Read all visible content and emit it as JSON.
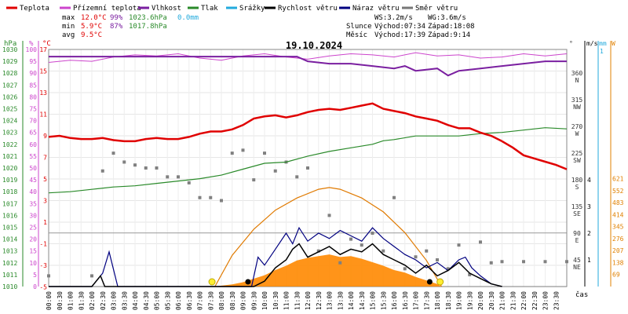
{
  "chart_data": {
    "type": "line",
    "title": "19.10.2024",
    "xlabel": "čas",
    "legend": [
      {
        "name": "Teplota",
        "color": "#e00000"
      },
      {
        "name": "Přízemní teplota",
        "color": "#cc44cc"
      },
      {
        "name": "Vlhkost",
        "color": "#7a1fa0"
      },
      {
        "name": "Tlak",
        "color": "#2a8a2a"
      },
      {
        "name": "Srážky",
        "color": "#22aadd"
      },
      {
        "name": "Rychlost větru",
        "color": "#000000"
      },
      {
        "name": "Náraz větru",
        "color": "#000080"
      },
      {
        "name": "Směr větru",
        "color": "#777777"
      }
    ],
    "stats": {
      "max_label": "max",
      "max_temp": "12.0°C",
      "max_hum": "99%",
      "max_press": "1023.6hPa",
      "max_rain": "0.0mm",
      "min_label": "min",
      "min_temp": "5.9°C",
      "min_hum": "87%",
      "min_press": "1017.8hPa",
      "avg_label": "avg",
      "avg_temp": "9.5°C"
    },
    "info": {
      "ws": "WS:3.2m/s",
      "wg": "WG:3.6m/s",
      "sun_label": "Slunce",
      "sun_rise": "Východ:07:34",
      "sun_set": "Západ:18:08",
      "moon_label": "Měsíc",
      "moon_rise": "Východ:17:39",
      "moon_set": "Západ:9:14"
    },
    "axes": {
      "hpa_title": "hPa",
      "pct_title": "%",
      "c_title": "°C",
      "deg_title": "°",
      "ms_title": "m/s",
      "mm_title": "mm",
      "w_title": "W",
      "hpa_ticks": [
        "1030",
        "1029",
        "1028",
        "1027",
        "1026",
        "1025",
        "1024",
        "1023",
        "1022",
        "1021",
        "1020",
        "1019",
        "1018",
        "1017",
        "1016",
        "1015",
        "1014",
        "1013",
        "1012",
        "1011",
        "1010"
      ],
      "pct_ticks": [
        "100",
        "95",
        "90",
        "85",
        "80",
        "75",
        "70",
        "65",
        "60",
        "55",
        "50",
        "45",
        "40",
        "35",
        "30",
        "25",
        "20",
        "15",
        "10",
        "5",
        "0"
      ],
      "c_ticks": [
        17,
        15,
        13,
        11,
        9,
        7,
        5,
        3,
        1,
        -1,
        -3,
        -5
      ],
      "dir_ticks": [
        {
          "deg": "360",
          "lab": "N"
        },
        {
          "deg": "315",
          "lab": "NW"
        },
        {
          "deg": "270",
          "lab": "W"
        },
        {
          "deg": "225",
          "lab": "SW"
        },
        {
          "deg": "180",
          "lab": "S"
        },
        {
          "deg": "135",
          "lab": "SE"
        },
        {
          "deg": "90",
          "lab": "E"
        },
        {
          "deg": "45",
          "lab": "NE"
        }
      ],
      "ms_ticks": [
        "4",
        "3",
        "2",
        "1"
      ],
      "mm_ticks": [
        "1"
      ],
      "w_ticks": [
        "621",
        "552",
        "483",
        "414",
        "345",
        "276",
        "207",
        "138",
        "69"
      ],
      "time_ticks": [
        "00:00",
        "00:30",
        "01:00",
        "01:30",
        "02:00",
        "02:30",
        "03:00",
        "03:30",
        "04:00",
        "04:30",
        "05:00",
        "05:30",
        "06:00",
        "06:30",
        "07:00",
        "07:30",
        "08:00",
        "08:30",
        "09:00",
        "09:30",
        "10:00",
        "10:30",
        "11:00",
        "11:30",
        "12:00",
        "12:30",
        "13:00",
        "13:30",
        "14:00",
        "14:30",
        "15:00",
        "15:30",
        "16:00",
        "16:30",
        "17:00",
        "17:30",
        "18:00",
        "18:30",
        "19:00",
        "19:30",
        "20:00",
        "20:30",
        "21:00",
        "21:30",
        "22:00",
        "22:30",
        "23:00",
        "23:30"
      ]
    },
    "series": {
      "temperature": {
        "unit": "°C",
        "hours": [
          0,
          0.5,
          1,
          1.5,
          2,
          2.5,
          3,
          3.5,
          4,
          4.5,
          5,
          5.5,
          6,
          6.5,
          7,
          7.5,
          8,
          8.5,
          9,
          9.5,
          10,
          10.5,
          11,
          11.5,
          12,
          12.5,
          13,
          13.5,
          14,
          14.5,
          15,
          15.5,
          16,
          16.5,
          17,
          17.5,
          18,
          18.5,
          19,
          19.5,
          20,
          20.5,
          21
        ],
        "values": [
          8.9,
          9.0,
          8.8,
          8.7,
          8.7,
          8.8,
          8.6,
          8.5,
          8.5,
          8.7,
          8.8,
          8.7,
          8.7,
          8.9,
          9.2,
          9.4,
          9.4,
          9.6,
          10.0,
          10.6,
          10.8,
          10.9,
          10.7,
          10.9,
          11.2,
          11.4,
          11.5,
          11.4,
          11.6,
          11.8,
          12.0,
          11.5,
          11.3,
          11.1,
          10.8,
          10.6,
          10.4,
          10.0,
          9.7,
          9.7,
          9.3,
          9.0,
          8.5
        ]
      },
      "temperature_tail": {
        "hours": [
          21.5,
          22,
          22.5,
          23,
          23.5,
          24
        ],
        "values": [
          7.9,
          7.2,
          6.9,
          6.6,
          6.3,
          5.9
        ]
      },
      "ground_temperature": {
        "unit": "°C",
        "hours": [
          0,
          1,
          2,
          3,
          4,
          5,
          6,
          7,
          8,
          9,
          10,
          11,
          12,
          13,
          14,
          15,
          16,
          17,
          18,
          19,
          20,
          21,
          22,
          23,
          24
        ],
        "values": [
          15.8,
          16.0,
          15.9,
          16.3,
          16.5,
          16.4,
          16.6,
          16.2,
          16.0,
          16.4,
          16.6,
          16.3,
          16.1,
          16.4,
          16.6,
          16.5,
          16.3,
          16.7,
          16.4,
          16.5,
          16.2,
          16.3,
          16.6,
          16.4,
          16.6
        ]
      },
      "humidity": {
        "unit": "%",
        "hours": [
          0,
          1,
          2,
          3,
          4,
          5,
          6,
          7,
          8,
          9,
          10,
          11,
          11.5,
          12,
          13,
          14,
          15,
          16,
          16.5,
          17,
          18,
          18.5,
          19,
          20,
          21,
          22,
          23,
          24
        ],
        "values": [
          97,
          97,
          97,
          97,
          97,
          97,
          97,
          97,
          97,
          97,
          97,
          97,
          97,
          95,
          94,
          94,
          93,
          92,
          93,
          91,
          92,
          89,
          91,
          92,
          93,
          94,
          95,
          95
        ]
      },
      "pressure": {
        "unit": "hPa",
        "hours": [
          0,
          1,
          2,
          3,
          4,
          5,
          6,
          7,
          8,
          9,
          10,
          11,
          12,
          13,
          14,
          15,
          15.5,
          16,
          17,
          18,
          19,
          20,
          21,
          22,
          23,
          24
        ],
        "values": [
          1017.9,
          1018.0,
          1018.2,
          1018.4,
          1018.5,
          1018.7,
          1018.9,
          1019.1,
          1019.4,
          1019.9,
          1020.4,
          1020.5,
          1021.0,
          1021.4,
          1021.7,
          1022.0,
          1022.3,
          1022.4,
          1022.7,
          1022.7,
          1022.7,
          1022.9,
          1023.0,
          1023.2,
          1023.4,
          1023.3
        ]
      },
      "wind_speed": {
        "unit": "m/s",
        "hours": [
          0,
          2,
          2.4,
          2.6,
          3,
          9.5,
          10,
          10.5,
          11,
          11.3,
          11.6,
          12,
          12.5,
          13,
          13.5,
          14,
          14.5,
          15,
          15.5,
          16,
          16.5,
          17,
          17.5,
          18,
          18.5,
          19,
          19.5,
          20,
          20.5,
          21
        ],
        "values": [
          0,
          0,
          0.4,
          0,
          0,
          0,
          0.2,
          0.7,
          1.0,
          1.4,
          1.6,
          1.1,
          1.3,
          1.5,
          1.2,
          1.4,
          1.3,
          1.6,
          1.2,
          1.0,
          0.8,
          0.5,
          0.8,
          0.4,
          0.6,
          0.9,
          0.5,
          0.3,
          0.1,
          0
        ]
      },
      "wind_gust": {
        "unit": "m/s",
        "hours": [
          0,
          2,
          2.5,
          2.8,
          3.2,
          9.4,
          9.7,
          10,
          10.5,
          11,
          11.3,
          11.6,
          12,
          12.5,
          13,
          13.5,
          14,
          14.5,
          15,
          15.5,
          16,
          16.5,
          17,
          17.5,
          18,
          18.5,
          19,
          19.3,
          19.6,
          20,
          20.5,
          21
        ],
        "values": [
          0,
          0,
          0.5,
          1.3,
          0,
          0,
          1.1,
          0.8,
          1.4,
          2.0,
          1.6,
          2.2,
          1.7,
          2.0,
          1.8,
          2.1,
          1.9,
          1.7,
          2.2,
          1.8,
          1.5,
          1.2,
          1.0,
          0.7,
          0.9,
          0.6,
          1.0,
          1.1,
          0.7,
          0.4,
          0.1,
          0
        ]
      },
      "wind_direction": {
        "unit": "°",
        "hours": [
          0,
          2,
          2.5,
          3,
          3.5,
          4,
          4.5,
          5,
          5.5,
          6,
          6.5,
          7,
          7.5,
          8,
          8.5,
          9,
          9.5,
          10,
          10.5,
          11,
          11.5,
          12,
          12.5,
          13,
          13.5,
          14,
          14.5,
          15,
          15.5,
          16,
          16.5,
          17,
          17.5,
          18,
          18.5,
          19,
          19.5,
          20,
          20.5,
          21,
          22,
          23,
          24
        ],
        "values": [
          18,
          18,
          195,
          225,
          210,
          205,
          200,
          200,
          185,
          185,
          175,
          150,
          150,
          145,
          225,
          230,
          180,
          225,
          195,
          210,
          185,
          200,
          60,
          120,
          40,
          80,
          70,
          90,
          60,
          150,
          30,
          50,
          60,
          45,
          30,
          70,
          20,
          75,
          40,
          42,
          42,
          42,
          42
        ]
      },
      "solar_radiation": {
        "unit": "W",
        "hours": [
          7.7,
          8,
          8.5,
          9,
          9.5,
          10,
          10.5,
          11,
          11.5,
          12,
          12.5,
          13,
          13.5,
          14,
          14.5,
          15,
          15.5,
          16,
          16.5,
          17,
          17.5,
          18,
          18.2
        ],
        "values": [
          0,
          5,
          12,
          25,
          45,
          65,
          95,
          120,
          150,
          165,
          175,
          185,
          170,
          175,
          160,
          140,
          120,
          95,
          80,
          55,
          35,
          15,
          0
        ]
      },
      "max_solar": {
        "unit": "W",
        "hours": [
          7.7,
          8.5,
          9.5,
          10.5,
          11.5,
          12.5,
          13,
          13.5,
          14.5,
          15.5,
          16.5,
          17.5,
          18.2
        ],
        "values": [
          0,
          180,
          330,
          440,
          510,
          560,
          570,
          560,
          510,
          430,
          310,
          150,
          0
        ]
      },
      "sun_markers": {
        "hours": [
          7.566,
          18.133
        ]
      },
      "moon_markers": {
        "hours": [
          9.233,
          17.65
        ]
      }
    }
  }
}
